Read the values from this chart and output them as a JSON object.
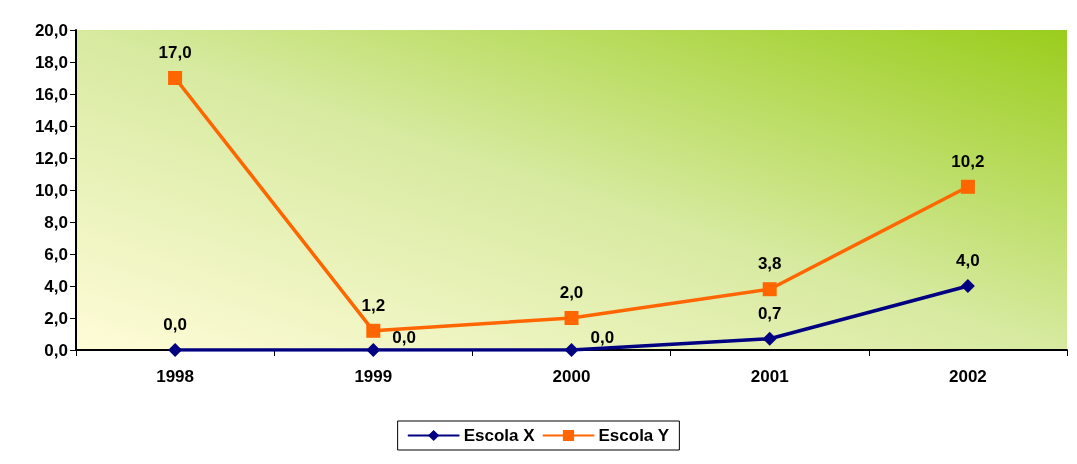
{
  "chart_data": {
    "type": "line",
    "categories": [
      "1998",
      "1999",
      "2000",
      "2001",
      "2002"
    ],
    "series": [
      {
        "name": "Escola X",
        "color": "#000080",
        "marker": "diamond",
        "values": [
          0,
          0,
          0,
          0.7,
          4.0
        ],
        "value_labels": [
          "0,0",
          "0,0",
          "0,0",
          "0,7",
          "4,0"
        ]
      },
      {
        "name": "Escola Y",
        "color": "#ff6600",
        "marker": "square",
        "values": [
          17.0,
          1.2,
          2.0,
          3.8,
          10.2
        ],
        "value_labels": [
          "17,0",
          "1,2",
          "2,0",
          "3,8",
          "10,2"
        ]
      }
    ],
    "ylim": [
      0,
      20
    ],
    "yticks": [
      {
        "value": 0,
        "label": "0,0"
      },
      {
        "value": 2,
        "label": "2,0"
      },
      {
        "value": 4,
        "label": "4,0"
      },
      {
        "value": 6,
        "label": "6,0"
      },
      {
        "value": 8,
        "label": "8,0"
      },
      {
        "value": 10,
        "label": "10,0"
      },
      {
        "value": 12,
        "label": "12,0"
      },
      {
        "value": 14,
        "label": "14,0"
      },
      {
        "value": 16,
        "label": "16,0"
      },
      {
        "value": 18,
        "label": "18,0"
      },
      {
        "value": 20,
        "label": "20,0"
      }
    ],
    "grid": false,
    "legend": "bottom"
  }
}
